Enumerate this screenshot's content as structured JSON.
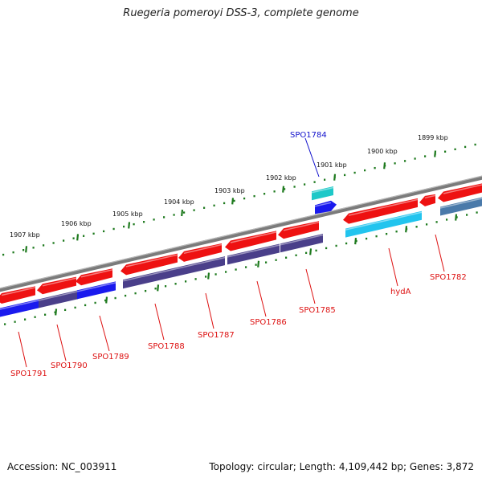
{
  "title": "Ruegeria pomeroyi DSS-3, complete genome",
  "footer": {
    "accession": "Accession: NC_003911",
    "stats": "Topology: circular; Length: 4,109,442 bp; Genes: 3,872"
  },
  "colors": {
    "backbone": "#7b7b7b",
    "tick_major": "#1e7a1e",
    "tick_minor": "#1e7a1e",
    "gene_red": "#ee1111",
    "gene_blue": "#1a1aee",
    "gene_purple": "#4a3f8a",
    "gene_cyan": "#22c4ee",
    "gene_teal": "#1ec8c8",
    "gene_steel": "#4a7aaa",
    "label_red": "#dd1111",
    "label_blue": "#1111cc"
  },
  "scale_labels": [
    "1899 kbp",
    "1900 kbp",
    "1901 kbp",
    "1902 kbp",
    "1903 kbp",
    "1904 kbp",
    "1905 kbp",
    "1906 kbp",
    "1907 kbp"
  ],
  "gene_labels": [
    {
      "name": "SPO1784",
      "color": "blue"
    },
    {
      "name": "SPO1782",
      "color": "red"
    },
    {
      "name": "hydA",
      "color": "red"
    },
    {
      "name": "SPO1785",
      "color": "red"
    },
    {
      "name": "SPO1786",
      "color": "red"
    },
    {
      "name": "SPO1787",
      "color": "red"
    },
    {
      "name": "SPO1788",
      "color": "red"
    },
    {
      "name": "SPO1789",
      "color": "red"
    },
    {
      "name": "SPO1790",
      "color": "red"
    },
    {
      "name": "SPO1791",
      "color": "red"
    }
  ]
}
